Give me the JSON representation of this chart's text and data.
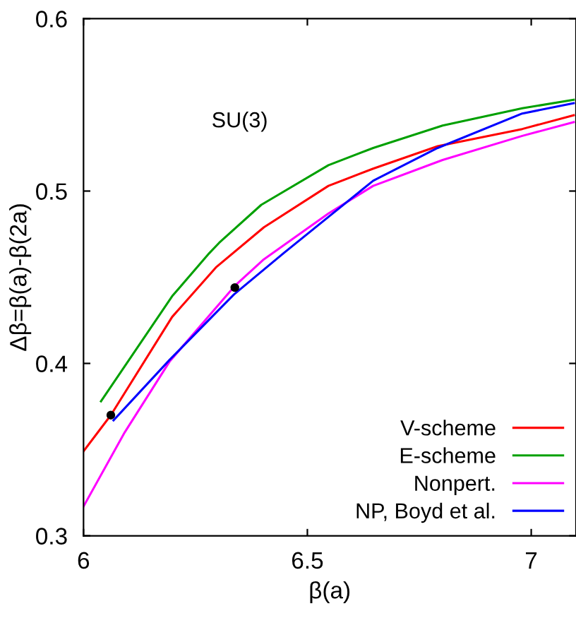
{
  "chart_data": {
    "type": "line",
    "xlabel": "β(a)",
    "ylabel": "Δβ=β(a)-β(2a)",
    "annotations": [
      "SU(3)"
    ],
    "xlim": [
      6,
      7.1
    ],
    "ylim": [
      0.3,
      0.6
    ],
    "xticks": [
      6,
      6.5,
      7
    ],
    "yticks": [
      0.3,
      0.4,
      0.5,
      0.6
    ],
    "grid": false,
    "legend": "bottom right",
    "marker": "none",
    "line_style": "solid",
    "series": [
      {
        "name": "V-scheme",
        "color": "#ff0000",
        "x": [
          6.0,
          6.061,
          6.198,
          6.297,
          6.403,
          6.547,
          6.647,
          6.791,
          6.98,
          7.095
        ],
        "values": [
          0.349,
          0.37,
          0.427,
          0.456,
          0.479,
          0.503,
          0.513,
          0.526,
          0.536,
          0.544
        ]
      },
      {
        "name": "E-scheme",
        "color": "#00a000",
        "x": [
          6.039,
          6.198,
          6.281,
          6.303,
          6.397,
          6.547,
          6.647,
          6.802,
          6.98,
          7.095
        ],
        "values": [
          0.378,
          0.439,
          0.464,
          0.47,
          0.492,
          0.515,
          0.525,
          0.538,
          0.548,
          0.553
        ]
      },
      {
        "name": "Nonpert.",
        "color": "#ff00ff",
        "x": [
          6.0,
          6.092,
          6.192,
          6.338,
          6.401,
          6.547,
          6.647,
          6.802,
          6.98,
          7.095
        ],
        "values": [
          0.317,
          0.36,
          0.401,
          0.445,
          0.46,
          0.487,
          0.503,
          0.518,
          0.532,
          0.54
        ]
      },
      {
        "name": "NP, Boyd et al.",
        "color": "#0000ff",
        "x": [
          6.067,
          6.192,
          6.336,
          6.447,
          6.547,
          6.647,
          6.791,
          6.98,
          7.095
        ],
        "values": [
          0.367,
          0.402,
          0.44,
          0.464,
          0.485,
          0.506,
          0.525,
          0.545,
          0.551
        ]
      },
      {
        "type": "scatter",
        "color": "#000000",
        "marker": "circle",
        "x": [
          6.061,
          6.338
        ],
        "values": [
          0.37,
          0.444
        ]
      }
    ]
  }
}
